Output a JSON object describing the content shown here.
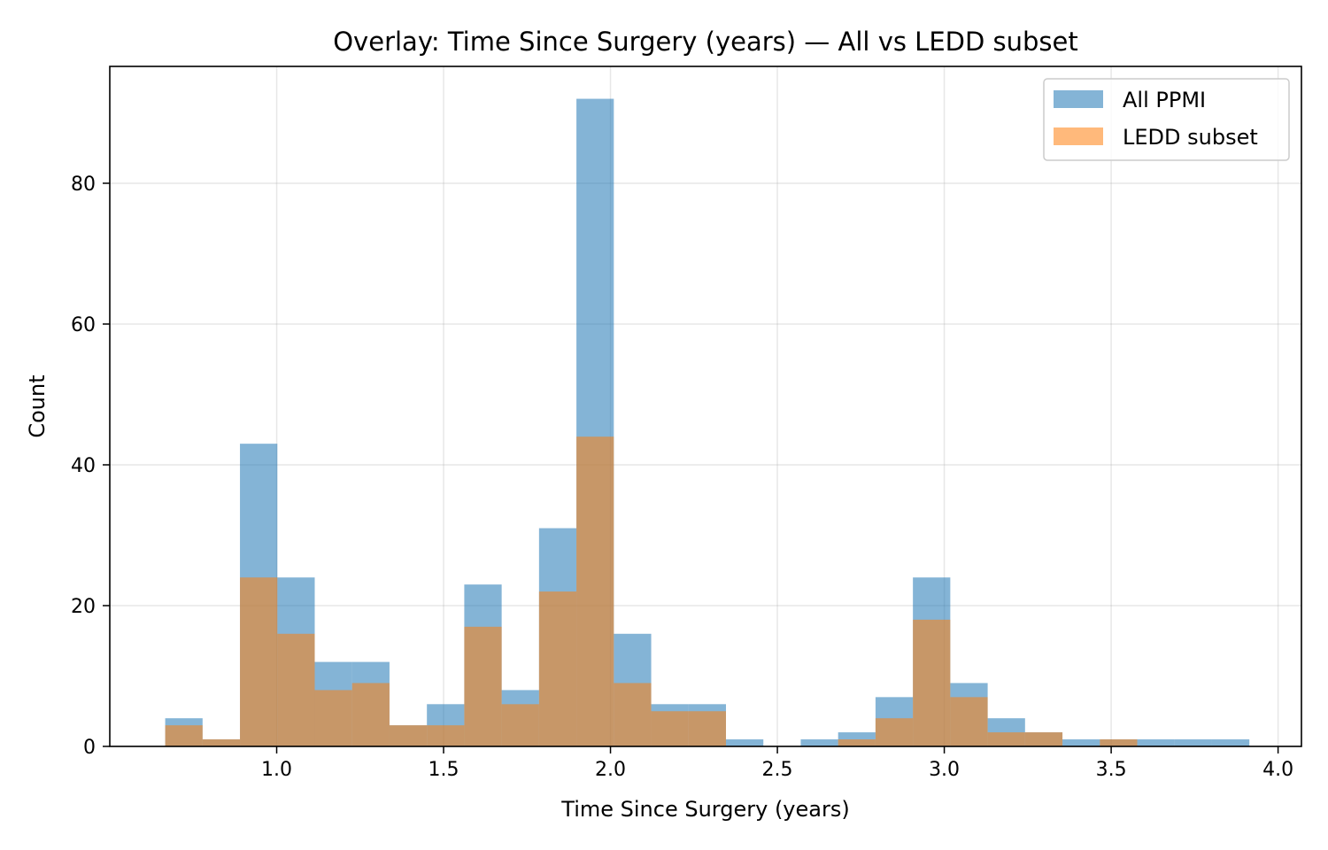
{
  "chart_data": {
    "type": "histogram",
    "title": "Overlay: Time Since Surgery (years) — All vs LEDD subset",
    "xlabel": "Time Since Surgery (years)",
    "ylabel": "Count",
    "xlim": [
      0.5,
      4.07
    ],
    "ylim": [
      0,
      96.6
    ],
    "xticks": [
      1.0,
      1.5,
      2.0,
      2.5,
      3.0,
      3.5,
      4.0
    ],
    "xtick_labels": [
      "1.0",
      "1.5",
      "2.0",
      "2.5",
      "3.0",
      "3.5",
      "4.0"
    ],
    "yticks": [
      0,
      20,
      40,
      60,
      80
    ],
    "ytick_labels": [
      "0",
      "20",
      "40",
      "60",
      "80"
    ],
    "grid": true,
    "legend_position": "top-right",
    "bin_edges": [
      0.666,
      0.778,
      0.89,
      1.002,
      1.114,
      1.226,
      1.338,
      1.45,
      1.562,
      1.674,
      1.786,
      1.898,
      2.01,
      2.122,
      2.234,
      2.346,
      2.458,
      2.57,
      2.682,
      2.794,
      2.906,
      3.018,
      3.13,
      3.242,
      3.354,
      3.466,
      3.578,
      3.69,
      3.802,
      3.914
    ],
    "series": [
      {
        "name": "All PPMI",
        "color": "#1f77b4",
        "opacity": 0.55,
        "values": [
          4,
          1,
          43,
          24,
          12,
          12,
          3,
          6,
          23,
          8,
          31,
          92,
          16,
          6,
          6,
          1,
          0,
          1,
          2,
          7,
          24,
          9,
          4,
          2,
          1,
          1,
          1,
          1,
          1
        ]
      },
      {
        "name": "LEDD subset",
        "color": "#ff7f0e",
        "opacity": 0.55,
        "values": [
          3,
          1,
          24,
          16,
          8,
          9,
          3,
          3,
          17,
          6,
          22,
          44,
          9,
          5,
          5,
          0,
          0,
          0,
          1,
          4,
          18,
          7,
          2,
          2,
          0,
          1,
          0,
          0,
          0
        ]
      }
    ]
  }
}
